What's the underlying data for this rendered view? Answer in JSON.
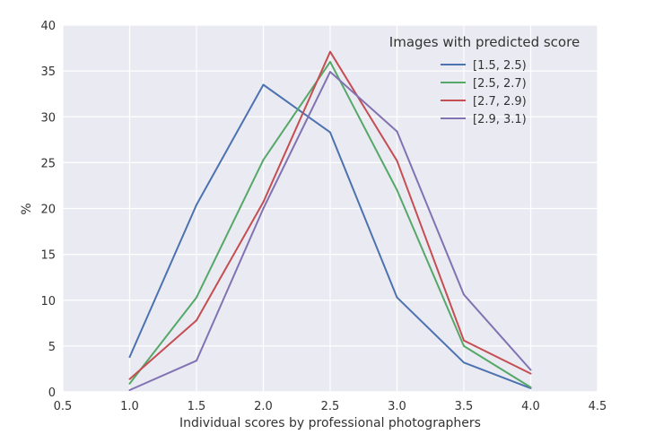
{
  "chart_data": {
    "type": "line",
    "title": "",
    "xlabel": "Individual scores by professional photographers",
    "ylabel": "%",
    "xlim": [
      0.5,
      4.5
    ],
    "ylim": [
      0,
      40
    ],
    "grid": true,
    "legend_position": "top-right",
    "legend_title": "Images with predicted score",
    "x": [
      1.0,
      1.5,
      2.0,
      2.5,
      3.0,
      3.5,
      4.0
    ],
    "xticks": [
      0.5,
      1.0,
      1.5,
      2.0,
      2.5,
      3.0,
      3.5,
      4.0,
      4.5
    ],
    "xtick_labels": [
      "0.5",
      "1.0",
      "1.5",
      "2.0",
      "2.5",
      "3.0",
      "3.5",
      "4.0",
      "4.5"
    ],
    "yticks": [
      0,
      5,
      10,
      15,
      20,
      25,
      30,
      35,
      40
    ],
    "ytick_labels": [
      "0",
      "5",
      "10",
      "15",
      "20",
      "25",
      "30",
      "35",
      "40"
    ],
    "series": [
      {
        "name": "[1.5, 2.5)",
        "color": "#4c72b0",
        "values": [
          3.8,
          20.4,
          33.5,
          28.3,
          10.3,
          3.2,
          0.4
        ]
      },
      {
        "name": "[2.5, 2.7)",
        "color": "#55a868",
        "values": [
          0.9,
          10.3,
          25.3,
          36.0,
          22.0,
          5.0,
          0.5
        ]
      },
      {
        "name": "[2.7, 2.9)",
        "color": "#c44e52",
        "values": [
          1.4,
          7.8,
          20.7,
          37.1,
          25.2,
          5.6,
          2.0
        ]
      },
      {
        "name": "[2.9, 3.1)",
        "color": "#8172b2",
        "values": [
          0.2,
          3.4,
          20.0,
          34.9,
          28.4,
          10.6,
          2.4
        ]
      }
    ],
    "colors": {
      "plot_background": "#eaeaf2",
      "grid": "#ffffff",
      "text": "#333333"
    }
  }
}
